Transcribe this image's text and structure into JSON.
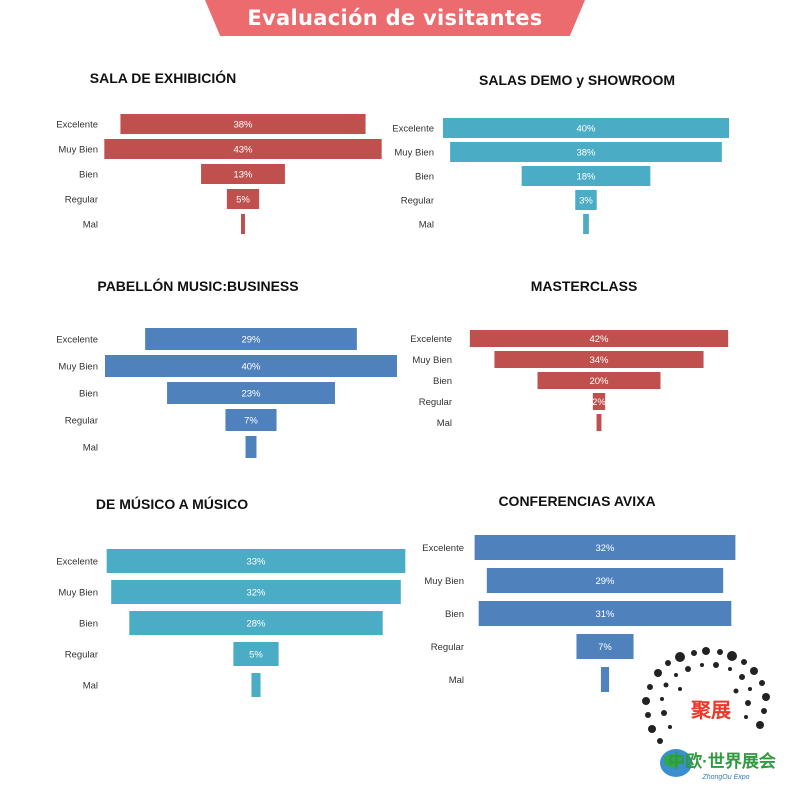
{
  "header": {
    "title": "Evaluación de visitantes"
  },
  "chart_data": [
    {
      "type": "bar",
      "title": "SALA DE EXHIBICIÓN",
      "categories": [
        "Excelente",
        "Muy Bien",
        "Bien",
        "Regular",
        "Mal"
      ],
      "values": [
        38,
        43,
        13,
        5,
        0.5
      ],
      "labels": [
        "38%",
        "43%",
        "13%",
        "5%",
        ""
      ],
      "color": "#c0504d"
    },
    {
      "type": "bar",
      "title": "SALAS DEMO y SHOWROOM",
      "categories": [
        "Excelente",
        "Muy Bien",
        "Bien",
        "Regular",
        "Mal"
      ],
      "values": [
        40,
        38,
        18,
        3,
        0.8
      ],
      "labels": [
        "40%",
        "38%",
        "18%",
        "3%",
        ""
      ],
      "color": "#4bacc6"
    },
    {
      "type": "bar",
      "title": "PABELLÓN MUSIC:BUSINESS",
      "categories": [
        "Excelente",
        "Muy Bien",
        "Bien",
        "Regular",
        "Mal"
      ],
      "values": [
        29,
        40,
        23,
        7,
        1.5
      ],
      "labels": [
        "29%",
        "40%",
        "23%",
        "7%",
        ""
      ],
      "color": "#4f81bd"
    },
    {
      "type": "bar",
      "title": "MASTERCLASS",
      "categories": [
        "Excelente",
        "Muy Bien",
        "Bien",
        "Regular",
        "Mal"
      ],
      "values": [
        42,
        34,
        20,
        2,
        0.8
      ],
      "labels": [
        "42%",
        "34%",
        "20%",
        "2%",
        ""
      ],
      "color": "#c0504d"
    },
    {
      "type": "bar",
      "title": "DE MÚSICO A MÚSICO",
      "categories": [
        "Excelente",
        "Muy Bien",
        "Bien",
        "Regular",
        "Mal"
      ],
      "values": [
        33,
        32,
        28,
        5,
        1.0
      ],
      "labels": [
        "33%",
        "32%",
        "28%",
        "5%",
        ""
      ],
      "color": "#4bacc6"
    },
    {
      "type": "bar",
      "title": "CONFERENCIAS  AVIXA",
      "categories": [
        "Excelente",
        "Muy Bien",
        "Bien",
        "Regular",
        "Mal"
      ],
      "values": [
        32,
        29,
        31,
        7,
        1.0
      ],
      "labels": [
        "32%",
        "29%",
        "31%",
        "7%",
        ""
      ],
      "color": "#4f81bd"
    }
  ],
  "logo": {
    "chinese_text": "聚展",
    "subtitle_cn": "中欧·世界展会",
    "subtitle_en": "ZhongOu Expo"
  }
}
